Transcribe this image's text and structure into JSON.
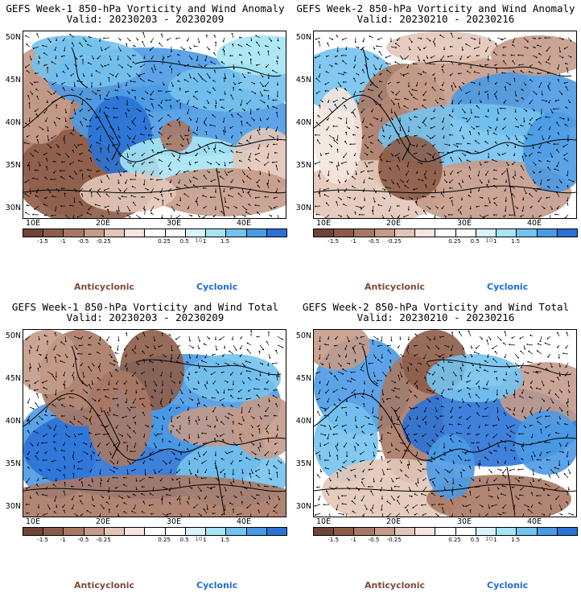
{
  "panels": [
    {
      "title": "GEFS Week-1 850-hPa Vorticity and Wind Anomaly",
      "valid": "Valid: 20230203 - 20230209",
      "variant": 0
    },
    {
      "title": "GEFS Week-2 850-hPa Vorticity and Wind Anomaly",
      "valid": "Valid: 20230210 - 20230216",
      "variant": 1
    },
    {
      "title": "GEFS Week-1 850-hPa Vorticity and Wind Total",
      "valid": "Valid: 20230203 - 20230209",
      "variant": 2
    },
    {
      "title": "GEFS Week-2 850-hPa Vorticity and Wind Total",
      "valid": "Valid: 20230210 - 20230216",
      "variant": 3
    }
  ],
  "axes": {
    "lat_labels": [
      "50N",
      "45N",
      "40N",
      "35N",
      "30N"
    ],
    "lon_labels": [
      "10E",
      "20E",
      "30E",
      "40E"
    ]
  },
  "colorbar": {
    "labels": [
      "-1.5",
      "-1",
      "-0.5",
      "-0.25",
      "0.25",
      "0.5",
      "1",
      "1.5"
    ],
    "scale_note": "10",
    "colors": [
      "#6e4636",
      "#8c5c48",
      "#a87864",
      "#c49a88",
      "#e2c6b8",
      "#f4e6de",
      "#ffffff",
      "#ffffff",
      "#d8f4fa",
      "#a6e4f4",
      "#74c2ee",
      "#4a9ae4",
      "#2a72d6"
    ]
  },
  "legend": {
    "anticyclonic": "Anticyclonic",
    "cyclonic": "Cyclonic"
  }
}
